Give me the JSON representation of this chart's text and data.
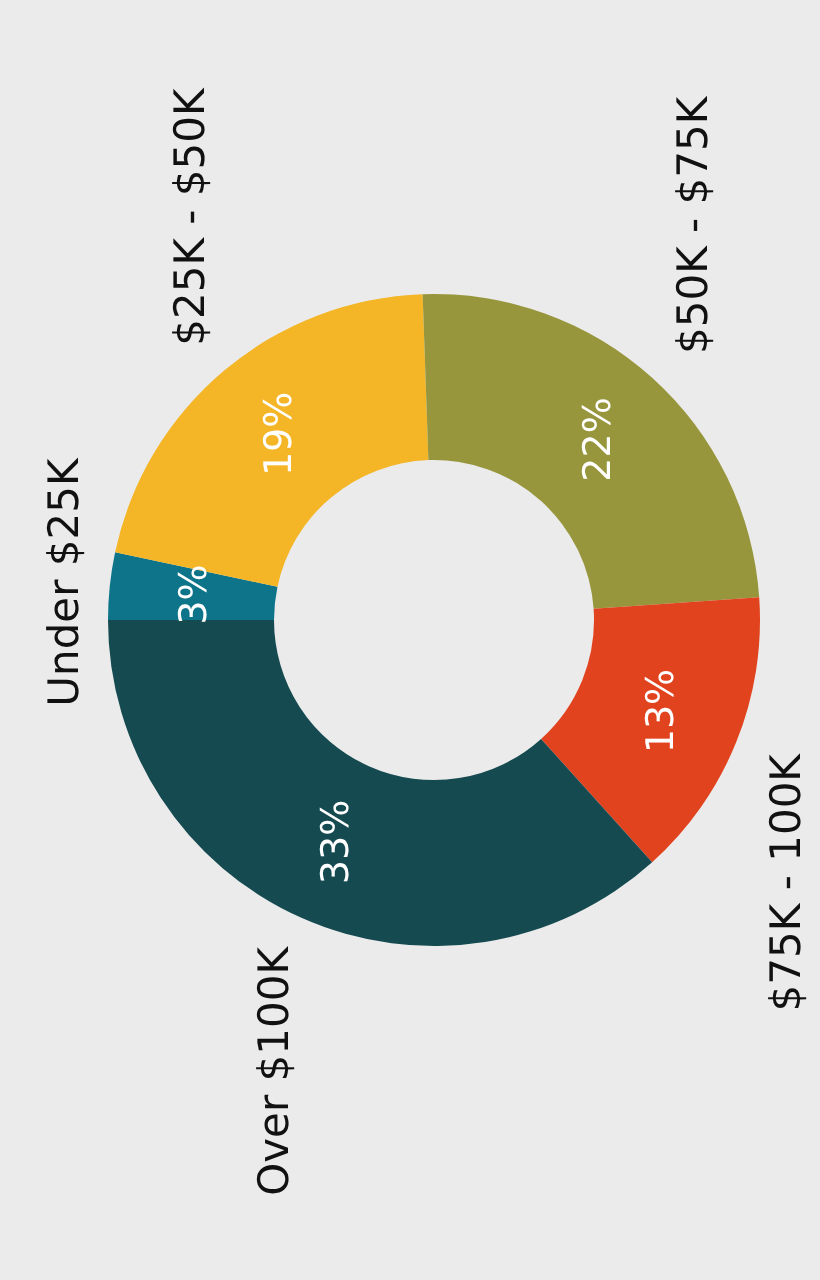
{
  "chart_data": {
    "type": "donut",
    "categories": [
      "Under $25K",
      "$25K - $50K",
      "$50K - $75K",
      "$75K - 100K",
      "Over $100K"
    ],
    "values": [
      3,
      19,
      22,
      13,
      33
    ],
    "value_labels": [
      "3%",
      "19%",
      "22%",
      "13%",
      "33%"
    ],
    "colors": [
      "#0e7489",
      "#f4b526",
      "#98963d",
      "#e2431f",
      "#144a50"
    ]
  }
}
